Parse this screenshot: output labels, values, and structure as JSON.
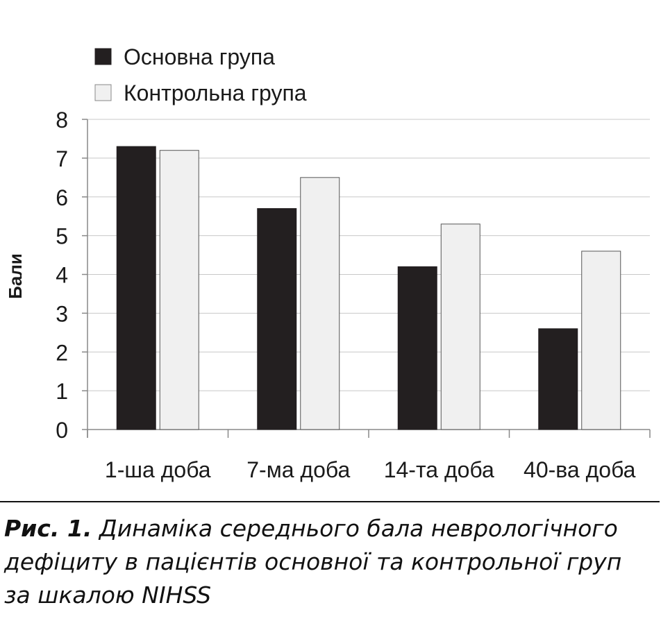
{
  "chart_data": {
    "type": "bar",
    "categories": [
      "1-ша доба",
      "7-ма доба",
      "14-та доба",
      "40-ва доба"
    ],
    "series": [
      {
        "name": "Основна група",
        "color": "#231f20",
        "values": [
          7.3,
          5.7,
          4.2,
          2.6
        ]
      },
      {
        "name": "Контрольна група",
        "color": "#f0f0f0",
        "values": [
          7.2,
          6.5,
          5.3,
          4.6
        ]
      }
    ],
    "ylabel": "Бали",
    "ylim": [
      0,
      8
    ],
    "yticks": [
      "0",
      "1",
      "2",
      "3",
      "4",
      "5",
      "6",
      "7",
      "8"
    ],
    "grid": true,
    "legend": "top-left"
  },
  "caption": {
    "label": "Рис. 1.",
    "text": "Динаміка середнього бала неврологічного дефіциту в пацієнтів основної та контрольної груп за шкалою NIHSS"
  }
}
